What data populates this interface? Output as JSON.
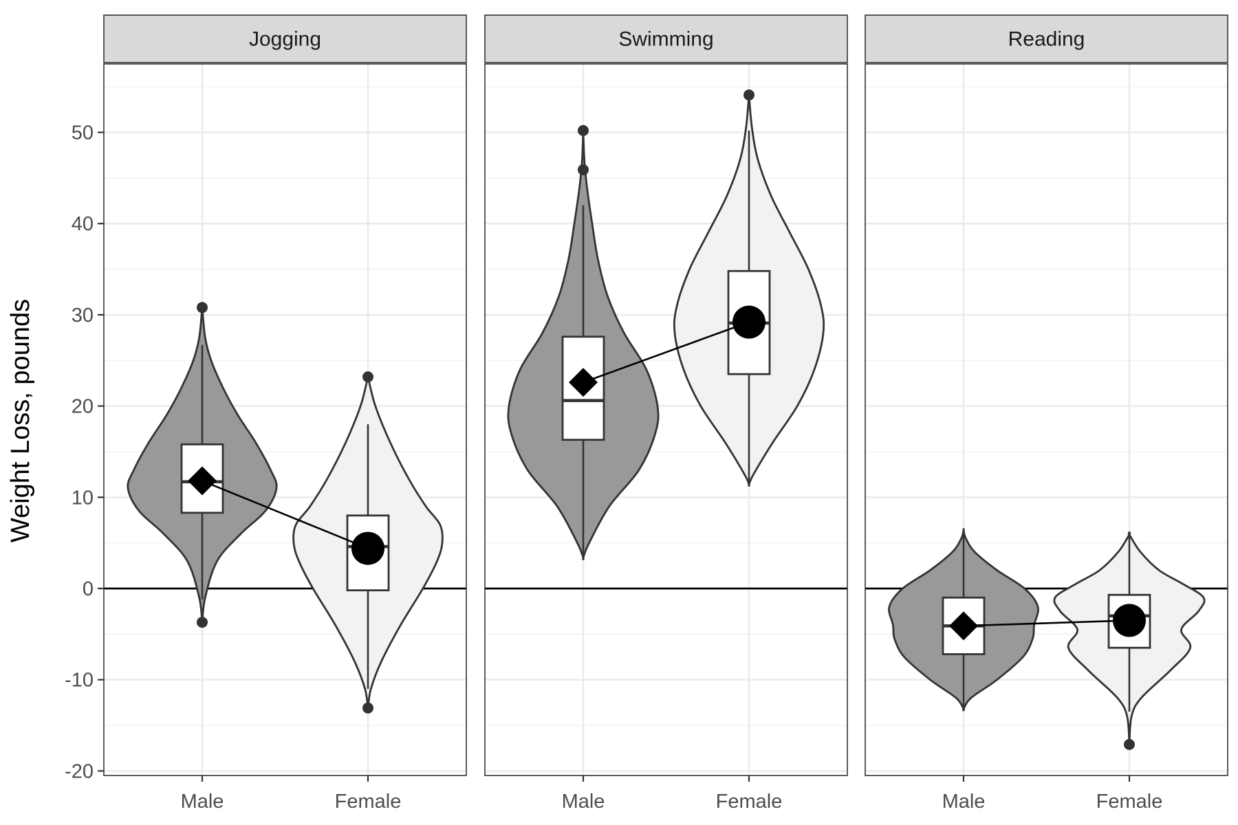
{
  "chart_data": {
    "type": "violin",
    "ylabel": "Weight Loss, pounds",
    "xlabel": "",
    "ylim": [
      -20.5,
      57.5
    ],
    "yticks": [
      -20,
      -10,
      0,
      10,
      20,
      30,
      40,
      50
    ],
    "reference_line_y": 0,
    "categories": [
      "Male",
      "Female"
    ],
    "colors": {
      "male_fill": "#999999",
      "female_fill": "#f2f2f2",
      "outline": "#333333",
      "strip_bg": "#d9d9d9"
    },
    "panels": [
      {
        "label": "Jogging",
        "groups": [
          {
            "name": "Male",
            "mean": 11.8,
            "median": 11.7,
            "q1": 8.3,
            "q3": 15.8,
            "whisker_low": -1.2,
            "whisker_high": 26.7,
            "outliers": [
              30.8,
              -3.7
            ],
            "density": [
              [
                -3.7,
                0.0
              ],
              [
                -1.0,
                0.04
              ],
              [
                3.0,
                0.2
              ],
              [
                6.0,
                0.52
              ],
              [
                8.5,
                0.85
              ],
              [
                11.0,
                1.0
              ],
              [
                13.0,
                0.92
              ],
              [
                16.0,
                0.72
              ],
              [
                19.0,
                0.48
              ],
              [
                22.0,
                0.28
              ],
              [
                25.0,
                0.12
              ],
              [
                27.5,
                0.04
              ],
              [
                30.8,
                0.0
              ]
            ]
          },
          {
            "name": "Female",
            "mean": 4.4,
            "median": 4.6,
            "q1": -0.2,
            "q3": 8.0,
            "whisker_low": -11.0,
            "whisker_high": 18.0,
            "outliers": [
              23.2,
              -13.1
            ],
            "density": [
              [
                -13.1,
                0.0
              ],
              [
                -11.0,
                0.04
              ],
              [
                -8.0,
                0.18
              ],
              [
                -4.0,
                0.44
              ],
              [
                0.0,
                0.74
              ],
              [
                3.0,
                0.93
              ],
              [
                5.0,
                1.0
              ],
              [
                7.0,
                0.97
              ],
              [
                9.0,
                0.78
              ],
              [
                12.0,
                0.55
              ],
              [
                16.0,
                0.3
              ],
              [
                20.0,
                0.1
              ],
              [
                23.2,
                0.0
              ]
            ]
          }
        ]
      },
      {
        "label": "Swimming",
        "groups": [
          {
            "name": "Male",
            "mean": 22.6,
            "median": 20.6,
            "q1": 16.3,
            "q3": 27.6,
            "whisker_low": 3.4,
            "whisker_high": 42.0,
            "outliers": [
              50.2,
              45.9
            ],
            "density": [
              [
                3.4,
                0.0
              ],
              [
                5.0,
                0.08
              ],
              [
                9.0,
                0.35
              ],
              [
                13.0,
                0.75
              ],
              [
                17.0,
                0.97
              ],
              [
                20.0,
                1.0
              ],
              [
                24.0,
                0.85
              ],
              [
                28.0,
                0.55
              ],
              [
                32.0,
                0.33
              ],
              [
                36.0,
                0.2
              ],
              [
                40.0,
                0.12
              ],
              [
                44.0,
                0.05
              ],
              [
                47.0,
                0.015
              ],
              [
                50.2,
                0.0
              ]
            ]
          },
          {
            "name": "Female",
            "mean": 29.2,
            "median": 29.1,
            "q1": 23.5,
            "q3": 34.8,
            "whisker_low": 11.5,
            "whisker_high": 50.2,
            "outliers": [
              54.1
            ],
            "density": [
              [
                11.4,
                0.0
              ],
              [
                12.5,
                0.06
              ],
              [
                16.0,
                0.32
              ],
              [
                20.0,
                0.65
              ],
              [
                24.0,
                0.88
              ],
              [
                28.0,
                1.0
              ],
              [
                31.0,
                0.97
              ],
              [
                35.0,
                0.8
              ],
              [
                39.0,
                0.55
              ],
              [
                43.0,
                0.3
              ],
              [
                47.0,
                0.12
              ],
              [
                50.5,
                0.04
              ],
              [
                54.1,
                0.0
              ]
            ]
          }
        ]
      },
      {
        "label": "Reading",
        "groups": [
          {
            "name": "Male",
            "mean": -4.1,
            "median": -4.1,
            "q1": -7.2,
            "q3": -1.0,
            "whisker_low": -13.2,
            "whisker_high": 6.4,
            "outliers": [],
            "density": [
              [
                -13.2,
                0.0
              ],
              [
                -12.0,
                0.1
              ],
              [
                -10.0,
                0.45
              ],
              [
                -7.5,
                0.8
              ],
              [
                -5.5,
                0.93
              ],
              [
                -4.0,
                0.95
              ],
              [
                -2.0,
                1.0
              ],
              [
                0.0,
                0.82
              ],
              [
                2.0,
                0.45
              ],
              [
                4.0,
                0.15
              ],
              [
                5.5,
                0.03
              ],
              [
                6.4,
                0.0
              ]
            ]
          },
          {
            "name": "Female",
            "mean": -3.5,
            "median": -3.0,
            "q1": -6.5,
            "q3": -0.7,
            "whisker_low": -13.5,
            "whisker_high": 5.8,
            "outliers": [
              -17.1
            ],
            "density": [
              [
                -17.1,
                0.0
              ],
              [
                -14.0,
                0.03
              ],
              [
                -12.0,
                0.16
              ],
              [
                -9.0,
                0.55
              ],
              [
                -6.5,
                0.82
              ],
              [
                -4.5,
                0.7
              ],
              [
                -2.5,
                0.93
              ],
              [
                -1.0,
                1.0
              ],
              [
                0.5,
                0.72
              ],
              [
                2.0,
                0.4
              ],
              [
                4.0,
                0.15
              ],
              [
                5.9,
                0.0
              ]
            ]
          }
        ]
      }
    ]
  }
}
